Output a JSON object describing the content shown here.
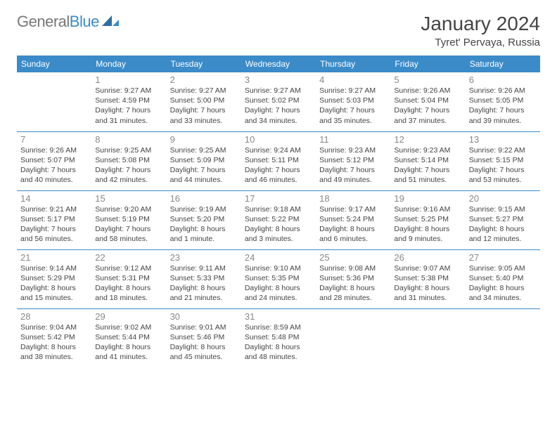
{
  "logo": {
    "text1": "General",
    "text2": "Blue"
  },
  "title": "January 2024",
  "location": "Tyret' Pervaya, Russia",
  "colors": {
    "header_bg": "#3b8bc9",
    "header_fg": "#ffffff",
    "rule": "#3b8bc9",
    "daynum": "#888888",
    "text": "#444444",
    "logo_gray": "#777777"
  },
  "dayNames": [
    "Sunday",
    "Monday",
    "Tuesday",
    "Wednesday",
    "Thursday",
    "Friday",
    "Saturday"
  ],
  "weeks": [
    [
      null,
      {
        "n": "1",
        "sr": "9:27 AM",
        "ss": "4:59 PM",
        "dl": "7 hours and 31 minutes."
      },
      {
        "n": "2",
        "sr": "9:27 AM",
        "ss": "5:00 PM",
        "dl": "7 hours and 33 minutes."
      },
      {
        "n": "3",
        "sr": "9:27 AM",
        "ss": "5:02 PM",
        "dl": "7 hours and 34 minutes."
      },
      {
        "n": "4",
        "sr": "9:27 AM",
        "ss": "5:03 PM",
        "dl": "7 hours and 35 minutes."
      },
      {
        "n": "5",
        "sr": "9:26 AM",
        "ss": "5:04 PM",
        "dl": "7 hours and 37 minutes."
      },
      {
        "n": "6",
        "sr": "9:26 AM",
        "ss": "5:05 PM",
        "dl": "7 hours and 39 minutes."
      }
    ],
    [
      {
        "n": "7",
        "sr": "9:26 AM",
        "ss": "5:07 PM",
        "dl": "7 hours and 40 minutes."
      },
      {
        "n": "8",
        "sr": "9:25 AM",
        "ss": "5:08 PM",
        "dl": "7 hours and 42 minutes."
      },
      {
        "n": "9",
        "sr": "9:25 AM",
        "ss": "5:09 PM",
        "dl": "7 hours and 44 minutes."
      },
      {
        "n": "10",
        "sr": "9:24 AM",
        "ss": "5:11 PM",
        "dl": "7 hours and 46 minutes."
      },
      {
        "n": "11",
        "sr": "9:23 AM",
        "ss": "5:12 PM",
        "dl": "7 hours and 49 minutes."
      },
      {
        "n": "12",
        "sr": "9:23 AM",
        "ss": "5:14 PM",
        "dl": "7 hours and 51 minutes."
      },
      {
        "n": "13",
        "sr": "9:22 AM",
        "ss": "5:15 PM",
        "dl": "7 hours and 53 minutes."
      }
    ],
    [
      {
        "n": "14",
        "sr": "9:21 AM",
        "ss": "5:17 PM",
        "dl": "7 hours and 56 minutes."
      },
      {
        "n": "15",
        "sr": "9:20 AM",
        "ss": "5:19 PM",
        "dl": "7 hours and 58 minutes."
      },
      {
        "n": "16",
        "sr": "9:19 AM",
        "ss": "5:20 PM",
        "dl": "8 hours and 1 minute."
      },
      {
        "n": "17",
        "sr": "9:18 AM",
        "ss": "5:22 PM",
        "dl": "8 hours and 3 minutes."
      },
      {
        "n": "18",
        "sr": "9:17 AM",
        "ss": "5:24 PM",
        "dl": "8 hours and 6 minutes."
      },
      {
        "n": "19",
        "sr": "9:16 AM",
        "ss": "5:25 PM",
        "dl": "8 hours and 9 minutes."
      },
      {
        "n": "20",
        "sr": "9:15 AM",
        "ss": "5:27 PM",
        "dl": "8 hours and 12 minutes."
      }
    ],
    [
      {
        "n": "21",
        "sr": "9:14 AM",
        "ss": "5:29 PM",
        "dl": "8 hours and 15 minutes."
      },
      {
        "n": "22",
        "sr": "9:12 AM",
        "ss": "5:31 PM",
        "dl": "8 hours and 18 minutes."
      },
      {
        "n": "23",
        "sr": "9:11 AM",
        "ss": "5:33 PM",
        "dl": "8 hours and 21 minutes."
      },
      {
        "n": "24",
        "sr": "9:10 AM",
        "ss": "5:35 PM",
        "dl": "8 hours and 24 minutes."
      },
      {
        "n": "25",
        "sr": "9:08 AM",
        "ss": "5:36 PM",
        "dl": "8 hours and 28 minutes."
      },
      {
        "n": "26",
        "sr": "9:07 AM",
        "ss": "5:38 PM",
        "dl": "8 hours and 31 minutes."
      },
      {
        "n": "27",
        "sr": "9:05 AM",
        "ss": "5:40 PM",
        "dl": "8 hours and 34 minutes."
      }
    ],
    [
      {
        "n": "28",
        "sr": "9:04 AM",
        "ss": "5:42 PM",
        "dl": "8 hours and 38 minutes."
      },
      {
        "n": "29",
        "sr": "9:02 AM",
        "ss": "5:44 PM",
        "dl": "8 hours and 41 minutes."
      },
      {
        "n": "30",
        "sr": "9:01 AM",
        "ss": "5:46 PM",
        "dl": "8 hours and 45 minutes."
      },
      {
        "n": "31",
        "sr": "8:59 AM",
        "ss": "5:48 PM",
        "dl": "8 hours and 48 minutes."
      },
      null,
      null,
      null
    ]
  ],
  "labels": {
    "sunrise": "Sunrise:",
    "sunset": "Sunset:",
    "daylight": "Daylight:"
  }
}
